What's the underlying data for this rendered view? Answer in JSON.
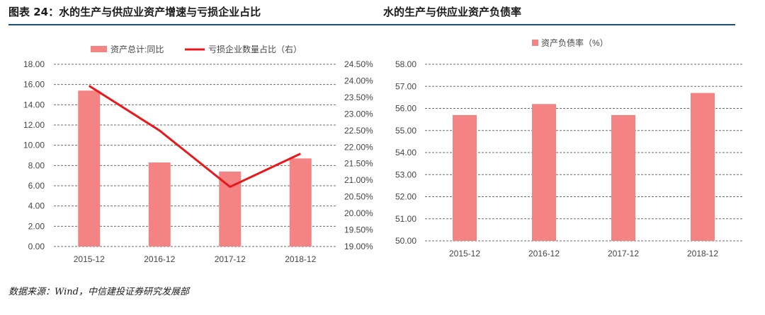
{
  "header": {
    "left_title": "图表 24：水的生产与供应业资产增速与亏损企业占比",
    "right_title": "水的生产与供应业资产负债率"
  },
  "source": "数据来源：Wind，中信建投证券研究发展部",
  "chart_data": [
    {
      "type": "bar+line",
      "categories": [
        "2015-12",
        "2016-12",
        "2017-12",
        "2018-12"
      ],
      "series": [
        {
          "name": "资产总计:同比",
          "type": "bar",
          "axis": "left",
          "color": "#f48383",
          "values": [
            15.4,
            8.3,
            7.4,
            8.7
          ]
        },
        {
          "name": "亏损企业数量占比（右）",
          "type": "line",
          "axis": "right",
          "color": "#e8191b",
          "values": [
            23.85,
            22.5,
            20.8,
            21.8
          ]
        }
      ],
      "ylim": [
        0,
        18
      ],
      "yticks": [
        "0.00",
        "2.00",
        "4.00",
        "6.00",
        "8.00",
        "10.00",
        "12.00",
        "14.00",
        "16.00",
        "18.00"
      ],
      "y2lim": [
        19,
        24.5
      ],
      "y2ticks": [
        "19.00%",
        "19.50%",
        "20.00%",
        "20.50%",
        "21.00%",
        "21.50%",
        "22.00%",
        "22.50%",
        "23.00%",
        "23.50%",
        "24.00%",
        "24.50%"
      ],
      "grid": true,
      "legend_position": "top"
    },
    {
      "type": "bar",
      "categories": [
        "2015-12",
        "2016-12",
        "2017-12",
        "2018-12"
      ],
      "series": [
        {
          "name": "资产负债率（%）",
          "color": "#f48383",
          "values": [
            55.7,
            56.2,
            55.7,
            56.7
          ]
        }
      ],
      "ylim": [
        50,
        58
      ],
      "yticks": [
        "50.00",
        "51.00",
        "52.00",
        "53.00",
        "54.00",
        "55.00",
        "56.00",
        "57.00",
        "58.00"
      ],
      "grid": true,
      "legend_position": "top"
    }
  ]
}
